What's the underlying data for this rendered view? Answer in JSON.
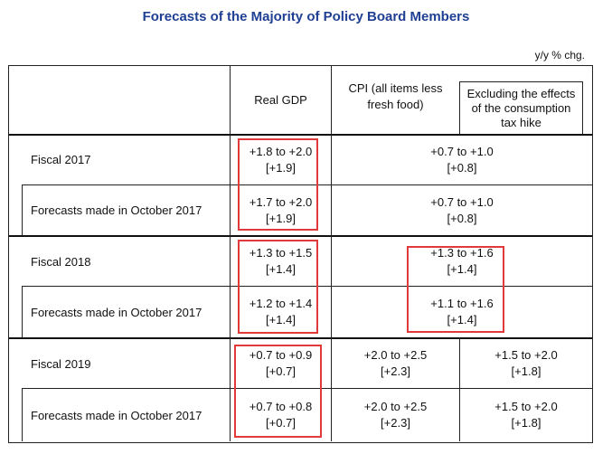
{
  "title": "Forecasts of the Majority of Policy Board Members",
  "unit": "y/y % chg.",
  "headers": {
    "real_gdp": "Real GDP",
    "cpi_line1": "CPI (all items less",
    "cpi_line2": "fresh food)",
    "excl_line1": "Excluding the effects",
    "excl_line2": "of the consumption",
    "excl_line3": "tax hike"
  },
  "rows": [
    {
      "label": "Fiscal 2017",
      "gdp_range": "+1.8 to +2.0",
      "gdp_median": "[+1.9]",
      "cpi_range": "+0.7 to +1.0",
      "cpi_median": "[+0.8]"
    },
    {
      "label": "Forecasts made in October 2017",
      "gdp_range": "+1.7 to +2.0",
      "gdp_median": "[+1.9]",
      "cpi_range": "+0.7 to +1.0",
      "cpi_median": "[+0.8]"
    },
    {
      "label": "Fiscal 2018",
      "gdp_range": "+1.3 to +1.5",
      "gdp_median": "[+1.4]",
      "cpi_range": "+1.3 to +1.6",
      "cpi_median": "[+1.4]"
    },
    {
      "label": "Forecasts made in October 2017",
      "gdp_range": "+1.2 to +1.4",
      "gdp_median": "[+1.4]",
      "cpi_range": "+1.1 to +1.6",
      "cpi_median": "[+1.4]"
    },
    {
      "label": "Fiscal 2019",
      "gdp_range": "+0.7 to +0.9",
      "gdp_median": "[+0.7]",
      "cpi_range": "+2.0 to +2.5",
      "cpi_median": "[+2.3]",
      "excl_range": "+1.5 to +2.0",
      "excl_median": "[+1.8]"
    },
    {
      "label": "Forecasts made in October 2017",
      "gdp_range": "+0.7 to +0.8",
      "gdp_median": "[+0.7]",
      "cpi_range": "+2.0 to +2.5",
      "cpi_median": "[+2.3]",
      "excl_range": "+1.5 to +2.0",
      "excl_median": "[+1.8]"
    }
  ],
  "colors": {
    "title": "#1f3f93",
    "highlight": "#e03a3a"
  }
}
